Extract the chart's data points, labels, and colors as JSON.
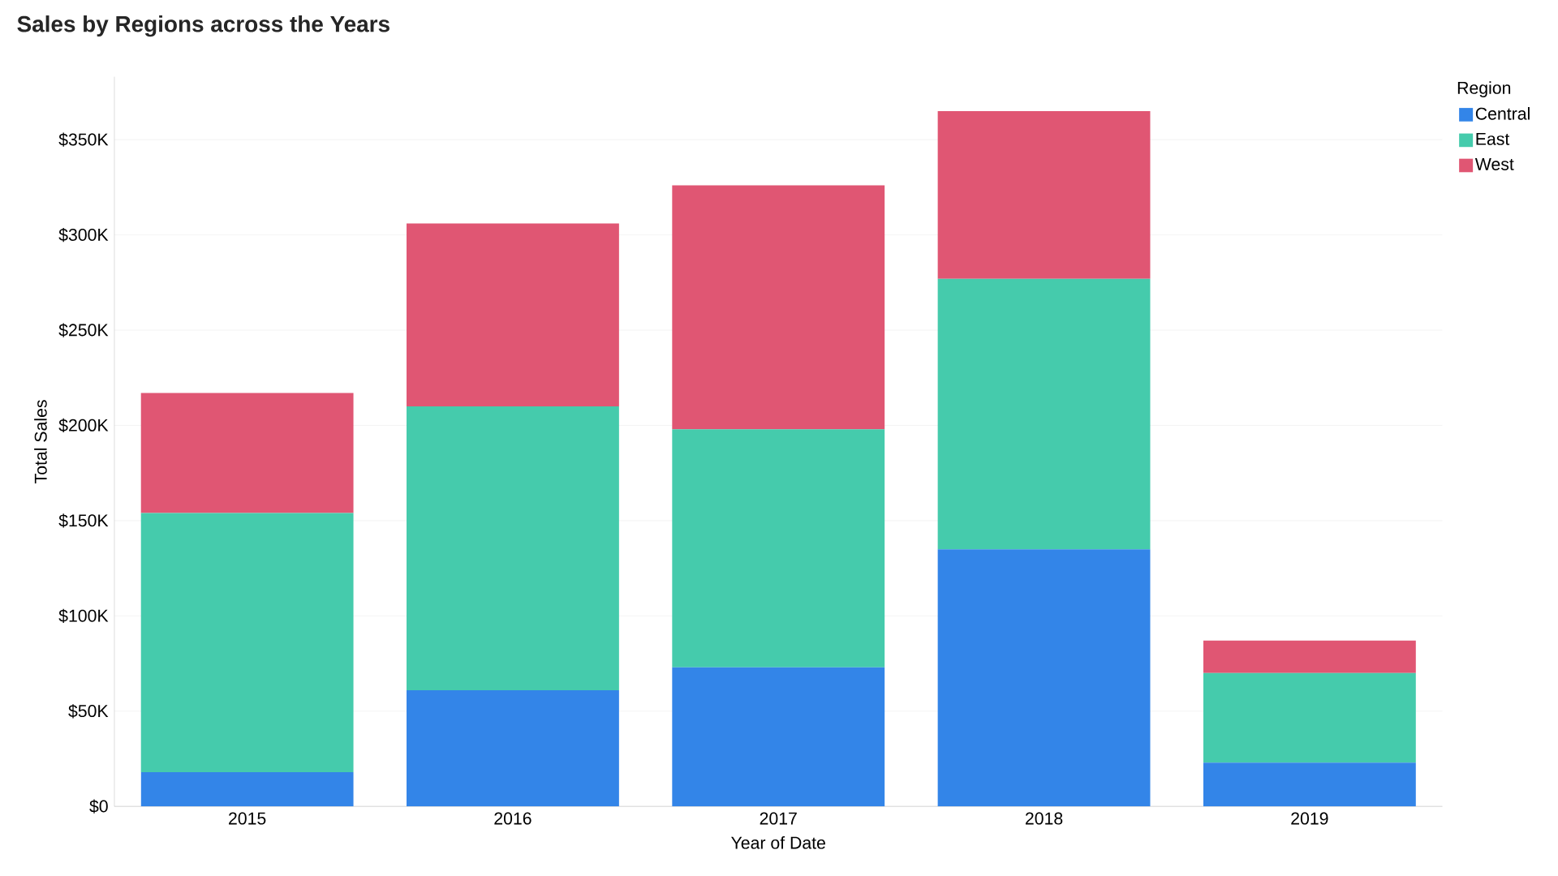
{
  "chart_data": {
    "type": "bar",
    "title": "Sales by Regions across the Years",
    "xlabel": "Year of Date",
    "ylabel": "Total Sales",
    "legend_title": "Region",
    "categories": [
      "2015",
      "2016",
      "2017",
      "2018",
      "2019"
    ],
    "stacked": true,
    "series": [
      {
        "name": "Central",
        "color": "#3385e8",
        "values": [
          18,
          61,
          73,
          135,
          23
        ]
      },
      {
        "name": "East",
        "color": "#45cbac",
        "values": [
          136,
          149,
          125,
          142,
          47
        ]
      },
      {
        "name": "West",
        "color": "#e05673",
        "values": [
          63,
          96,
          128,
          88,
          17
        ]
      }
    ],
    "ylim": [
      0,
      383
    ],
    "yticks": [
      {
        "value": 0,
        "label": "$0"
      },
      {
        "value": 50,
        "label": "$50K"
      },
      {
        "value": 100,
        "label": "$100K"
      },
      {
        "value": 150,
        "label": "$150K"
      },
      {
        "value": 200,
        "label": "$200K"
      },
      {
        "value": 250,
        "label": "$250K"
      },
      {
        "value": 300,
        "label": "$300K"
      },
      {
        "value": 350,
        "label": "$350K"
      }
    ],
    "grid": "y",
    "legend": "top right"
  }
}
